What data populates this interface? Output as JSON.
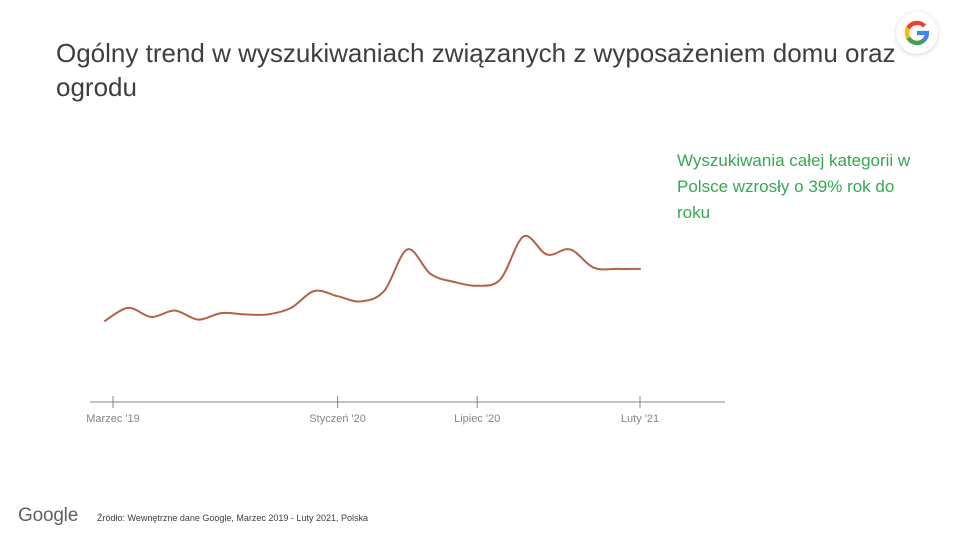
{
  "slide": {
    "title": "Ogólny trend w wyszukiwaniach związanych z wyposażeniem domu oraz ogrodu",
    "callout": "Wyszukiwania całej kategorii w Polsce wzrosły o 39% rok do roku",
    "footer_logo": "Google",
    "source": "Źródło: Wewnętrzne dane Google, Marzec  2019 - Luty 2021, Polska",
    "colors": {
      "line": "#b5604a",
      "callout": "#34a853",
      "axis": "#80868b"
    },
    "badge_icon": "google-g-icon"
  },
  "chart_data": {
    "type": "line",
    "title": "",
    "xlabel": "",
    "ylabel": "",
    "x": [
      "2019-03",
      "2019-04",
      "2019-05",
      "2019-06",
      "2019-07",
      "2019-08",
      "2019-09",
      "2019-10",
      "2019-11",
      "2019-12",
      "2020-01",
      "2020-02",
      "2020-03",
      "2020-04",
      "2020-05",
      "2020-06",
      "2020-07",
      "2020-08",
      "2020-09",
      "2020-10",
      "2020-11",
      "2020-12",
      "2021-01",
      "2021-02"
    ],
    "series": [
      {
        "values": [
          7,
          17,
          10,
          15,
          8,
          13,
          12,
          12,
          17,
          30,
          26,
          22,
          30,
          62,
          43,
          37,
          34,
          39,
          72,
          58,
          62,
          48,
          47,
          47
        ]
      }
    ],
    "x_ticks": [
      "Marzec '19",
      "Styczeń '20",
      "Lipiec '20",
      "Luty '21"
    ],
    "grid": false,
    "ylim": [
      0,
      100
    ]
  }
}
